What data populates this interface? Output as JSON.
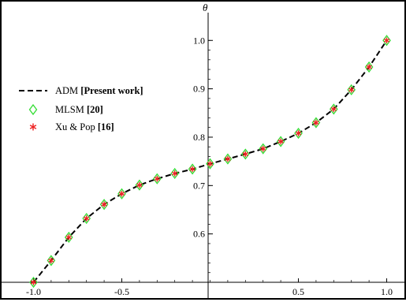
{
  "chart_data": {
    "type": "line",
    "ylabel": "θ",
    "xlabel": "",
    "xlim": [
      -1.02,
      1.02
    ],
    "ylim": [
      0.5,
      1.02
    ],
    "x_ticks": [
      {
        "value": -1.0,
        "label": "-1.0"
      },
      {
        "value": -0.5,
        "label": "-0.5"
      },
      {
        "value": 0.5,
        "label": "0.5"
      },
      {
        "value": 1.0,
        "label": "1.0"
      }
    ],
    "y_ticks": [
      {
        "value": 0.6,
        "label": "0.6"
      },
      {
        "value": 0.7,
        "label": "0.7"
      },
      {
        "value": 0.8,
        "label": "0.8"
      },
      {
        "value": 0.9,
        "label": "0.9"
      },
      {
        "value": 1.0,
        "label": "1.0"
      }
    ],
    "legend": {
      "placement": "upper-left",
      "entries": [
        {
          "name": "ADM",
          "ref": "[Present work]",
          "marker": "dashed-line",
          "color": "#000000"
        },
        {
          "name": "MLSM",
          "ref": "[20]",
          "marker": "diamond",
          "color": "#33dd33"
        },
        {
          "name": "Xu & Pop",
          "ref": "[16]",
          "marker": "asterisk",
          "color": "#ee2222"
        }
      ]
    },
    "series": [
      {
        "name": "ADM [Present work]",
        "style": "dashed",
        "color": "#000000",
        "x": [
          -1.0,
          -0.9,
          -0.8,
          -0.7,
          -0.6,
          -0.5,
          -0.4,
          -0.3,
          -0.2,
          -0.1,
          0.0,
          0.1,
          0.2,
          0.3,
          0.4,
          0.5,
          0.6,
          0.7,
          0.8,
          0.9,
          1.0
        ],
        "y": [
          0.5,
          0.545,
          0.593,
          0.632,
          0.661,
          0.683,
          0.701,
          0.714,
          0.725,
          0.734,
          0.745,
          0.755,
          0.765,
          0.776,
          0.791,
          0.808,
          0.83,
          0.858,
          0.898,
          0.945,
          1.0
        ]
      },
      {
        "name": "MLSM [20]",
        "style": "diamond-markers",
        "color": "#33dd33",
        "x": [
          -1.0,
          -0.9,
          -0.8,
          -0.7,
          -0.6,
          -0.5,
          -0.4,
          -0.3,
          -0.2,
          -0.1,
          0.0,
          0.1,
          0.2,
          0.3,
          0.4,
          0.5,
          0.6,
          0.7,
          0.8,
          0.9,
          1.0
        ],
        "y": [
          0.5,
          0.545,
          0.593,
          0.632,
          0.661,
          0.683,
          0.701,
          0.714,
          0.725,
          0.734,
          0.745,
          0.755,
          0.765,
          0.776,
          0.791,
          0.808,
          0.83,
          0.858,
          0.898,
          0.945,
          1.0
        ]
      },
      {
        "name": "Xu & Pop [16]",
        "style": "asterisk-markers",
        "color": "#ee2222",
        "x": [
          -1.0,
          -0.9,
          -0.8,
          -0.7,
          -0.6,
          -0.5,
          -0.4,
          -0.3,
          -0.2,
          -0.1,
          0.0,
          0.1,
          0.2,
          0.3,
          0.4,
          0.5,
          0.6,
          0.7,
          0.8,
          0.9,
          1.0
        ],
        "y": [
          0.5,
          0.545,
          0.593,
          0.632,
          0.661,
          0.683,
          0.701,
          0.714,
          0.725,
          0.734,
          0.745,
          0.755,
          0.765,
          0.776,
          0.791,
          0.808,
          0.83,
          0.858,
          0.898,
          0.945,
          1.0
        ]
      }
    ]
  }
}
